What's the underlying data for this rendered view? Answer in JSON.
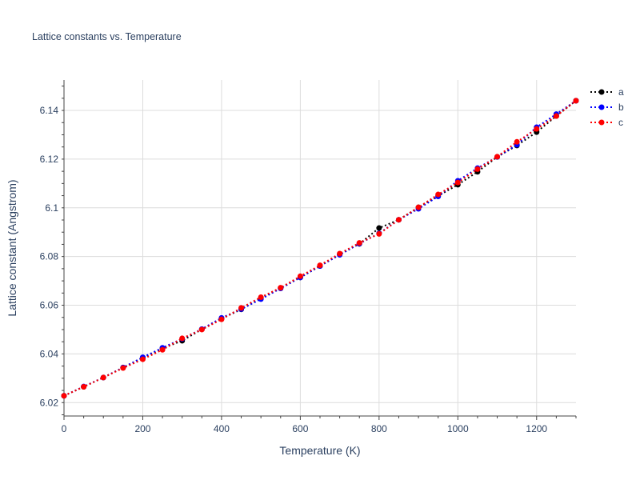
{
  "chart_data": {
    "type": "line",
    "title": "Lattice constants vs. Temperature",
    "xlabel": "Temperature (K)",
    "ylabel": "Lattice constant (Angstrom)",
    "xlim": [
      0,
      1300
    ],
    "ylim": [
      6.0145,
      6.1525
    ],
    "xticks": [
      0,
      200,
      400,
      600,
      800,
      1000,
      1200
    ],
    "xtick_labels": [
      "0",
      "200",
      "400",
      "600",
      "800",
      "1000",
      "1200"
    ],
    "yticks": [
      6.02,
      6.04,
      6.06,
      6.08,
      6.1,
      6.12,
      6.14
    ],
    "ytick_labels": [
      "6.02",
      "6.04",
      "6.06",
      "6.08",
      "6.1",
      "6.12",
      "6.14"
    ],
    "grid": true,
    "legend_position": "top-right-outside",
    "x": [
      0,
      50,
      100,
      150,
      200,
      250,
      300,
      350,
      400,
      450,
      500,
      550,
      600,
      650,
      700,
      750,
      800,
      850,
      900,
      950,
      1000,
      1050,
      1100,
      1150,
      1200,
      1250,
      1300
    ],
    "series": [
      {
        "name": "a",
        "color": "#000000",
        "values": [
          6.0228,
          6.0265,
          6.0303,
          6.0344,
          6.0384,
          6.0423,
          6.0454,
          6.0501,
          6.0545,
          6.0583,
          6.0629,
          6.067,
          6.0714,
          6.0761,
          6.0809,
          6.0852,
          6.0917,
          6.0951,
          6.1002,
          6.1049,
          6.1095,
          6.1148,
          6.1209,
          6.1256,
          6.1311,
          6.1377,
          6.144
        ]
      },
      {
        "name": "b",
        "color": "#0000ff",
        "values": [
          6.0228,
          6.0266,
          6.0303,
          6.0344,
          6.0386,
          6.0425,
          6.0462,
          6.0502,
          6.0548,
          6.0584,
          6.0625,
          6.0669,
          6.0714,
          6.0761,
          6.0807,
          6.0853,
          6.0895,
          6.0951,
          6.0996,
          6.1047,
          6.1111,
          6.1163,
          6.1209,
          6.1259,
          6.1331,
          6.1385,
          6.144
        ]
      },
      {
        "name": "c",
        "color": "#ff0000",
        "values": [
          6.0228,
          6.0265,
          6.0303,
          6.0342,
          6.0378,
          6.0417,
          6.0464,
          6.05,
          6.0542,
          6.0589,
          6.0633,
          6.0672,
          6.0719,
          6.0764,
          6.0812,
          6.0856,
          6.0893,
          6.0951,
          6.1002,
          6.1055,
          6.1104,
          6.1159,
          6.121,
          6.1271,
          6.1324,
          6.1377,
          6.144
        ]
      }
    ]
  }
}
